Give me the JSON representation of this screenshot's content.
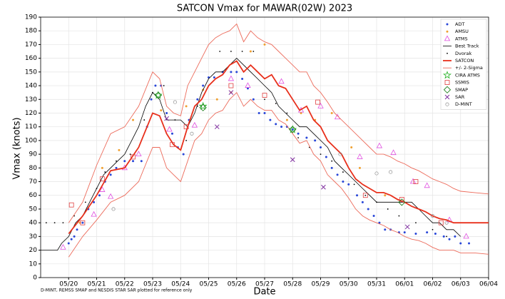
{
  "chart_data": {
    "type": "line",
    "title": "SATCON Vmax for MAWAR(02W) 2023",
    "x_label": "Date",
    "y_label": "Vmax (knots)",
    "footnote": "D-MINT, REMSS SMAP and NESDIS STAR SAR plotted for reference only",
    "xlim": [
      19,
      35
    ],
    "ylim": [
      0,
      190
    ],
    "grid": true,
    "legend": "upper right",
    "xticks": [
      {
        "value": 20,
        "label": "05/20"
      },
      {
        "value": 21,
        "label": "05/21"
      },
      {
        "value": 22,
        "label": "05/22"
      },
      {
        "value": 23,
        "label": "05/23"
      },
      {
        "value": 24,
        "label": "05/24"
      },
      {
        "value": 25,
        "label": "05/25"
      },
      {
        "value": 26,
        "label": "05/26"
      },
      {
        "value": 27,
        "label": "05/27"
      },
      {
        "value": 28,
        "label": "05/28"
      },
      {
        "value": 29,
        "label": "05/29"
      },
      {
        "value": 30,
        "label": "05/30"
      },
      {
        "value": 31,
        "label": "05/31"
      },
      {
        "value": 32,
        "label": "06/01"
      },
      {
        "value": 33,
        "label": "06/02"
      },
      {
        "value": 34,
        "label": "06/03"
      },
      {
        "value": 35,
        "label": "06/04"
      }
    ],
    "yticks": [
      0,
      10,
      20,
      30,
      40,
      50,
      60,
      70,
      80,
      90,
      100,
      110,
      120,
      130,
      140,
      150,
      160,
      170,
      180,
      190
    ],
    "series": [
      {
        "name": "ADT",
        "color": "#2846d8",
        "marker": "dot",
        "x": [
          20.0,
          20.1,
          20.2,
          20.3,
          20.5,
          20.7,
          20.9,
          21.1,
          21.3,
          21.5,
          21.7,
          22.0,
          22.3,
          22.6,
          22.8,
          22.95,
          23.1,
          23.3,
          23.5,
          23.7,
          23.9,
          24.1,
          24.3,
          24.6,
          24.8,
          25.0,
          25.2,
          25.5,
          25.8,
          26.0,
          26.2,
          26.4,
          26.6,
          26.8,
          27.0,
          27.2,
          27.4,
          27.6,
          27.8,
          28.0,
          28.2,
          28.5,
          28.8,
          29.0,
          29.2,
          29.4,
          29.6,
          29.8,
          30.0,
          30.3,
          30.5,
          30.7,
          30.9,
          31.1,
          31.3,
          31.5,
          31.8,
          32.0,
          32.4,
          32.8,
          33.1,
          33.4,
          33.6,
          33.8,
          34.0,
          34.3
        ],
        "values": [
          25,
          28,
          30,
          35,
          40,
          50,
          55,
          60,
          70,
          75,
          80,
          85,
          85,
          85,
          110,
          130,
          140,
          140,
          120,
          105,
          95,
          90,
          115,
          130,
          140,
          146,
          146,
          150,
          150,
          150,
          145,
          138,
          130,
          120,
          120,
          115,
          112,
          110,
          110,
          108,
          105,
          102,
          100,
          95,
          88,
          80,
          75,
          70,
          68,
          60,
          55,
          50,
          45,
          40,
          35,
          35,
          33,
          33,
          32,
          33,
          32,
          30,
          28,
          30,
          25,
          25
        ]
      },
      {
        "name": "AMSU",
        "color": "#f0a030",
        "marker": "dot",
        "x": [
          20.4,
          21.2,
          21.8,
          22.3,
          23.3,
          24.2,
          24.8,
          25.3,
          25.8,
          26.5,
          27.0,
          27.8,
          28.3,
          28.8,
          29.4,
          30.1,
          30.4,
          31.3
        ],
        "values": [
          40,
          80,
          93,
          115,
          122,
          125,
          137,
          130,
          135,
          165,
          170,
          115,
          120,
          115,
          120,
          95,
          80,
          60
        ]
      },
      {
        "name": "ATMS",
        "color": "#e050e0",
        "marker": "triangle",
        "x": [
          19.8,
          20.9,
          21.2,
          21.5,
          22.0,
          22.5,
          23.6,
          24.5,
          25.8,
          26.4,
          27.6,
          28.3,
          29.0,
          29.6,
          30.4,
          31.1,
          31.6,
          32.3,
          32.8,
          33.6,
          34.2
        ],
        "values": [
          22,
          46,
          64,
          59,
          80,
          90,
          108,
          111,
          145,
          140,
          143,
          122,
          125,
          117,
          88,
          96,
          91,
          70,
          67,
          42,
          30
        ]
      },
      {
        "name": "Best Track",
        "color": "#000000",
        "marker": "line",
        "width": 0.8,
        "x": [
          19.0,
          19.6,
          19.75,
          20.0,
          20.25,
          20.5,
          20.75,
          21.0,
          21.25,
          21.5,
          21.75,
          22.0,
          22.25,
          22.5,
          22.75,
          23.0,
          23.25,
          23.5,
          23.75,
          24.0,
          24.25,
          24.5,
          24.75,
          25.0,
          25.25,
          25.5,
          25.75,
          26.0,
          26.25,
          26.5,
          26.75,
          27.0,
          27.25,
          27.5,
          27.75,
          28.0,
          28.25,
          28.5,
          28.75,
          29.0,
          29.25,
          29.5,
          29.75,
          30.0,
          30.25,
          30.5,
          30.75,
          31.0,
          31.25,
          31.5,
          31.75,
          32.0,
          32.25,
          32.5,
          32.75,
          33.0,
          33.25,
          33.5,
          33.75,
          34.0
        ],
        "values": [
          20,
          20,
          25,
          30,
          40,
          45,
          55,
          65,
          75,
          80,
          85,
          90,
          100,
          110,
          125,
          135,
          130,
          115,
          115,
          115,
          110,
          120,
          135,
          145,
          150,
          150,
          155,
          160,
          155,
          150,
          145,
          140,
          135,
          125,
          120,
          115,
          110,
          110,
          105,
          100,
          95,
          85,
          80,
          75,
          70,
          65,
          60,
          55,
          55,
          55,
          55,
          55,
          55,
          50,
          45,
          40,
          40,
          35,
          35,
          30
        ]
      },
      {
        "name": "Dvorak",
        "color": "#000000",
        "marker": "small",
        "x": [
          19.2,
          19.5,
          19.8,
          20.2,
          20.6,
          21.0,
          21.3,
          21.7,
          22.2,
          22.7,
          23.0,
          23.4,
          23.8,
          24.2,
          24.6,
          25.0,
          25.4,
          25.8,
          26.2,
          26.6,
          27.0,
          27.4,
          27.8,
          28.2,
          28.6,
          29.0,
          29.4,
          29.8,
          30.2,
          30.6,
          31.0,
          31.4,
          31.8,
          32.4,
          33.0,
          33.5
        ],
        "values": [
          40,
          40,
          40,
          45,
          55,
          65,
          77,
          85,
          90,
          115,
          135,
          140,
          115,
          100,
          125,
          140,
          165,
          165,
          165,
          165,
          130,
          127,
          120,
          102,
          95,
          90,
          85,
          77,
          68,
          60,
          55,
          50,
          45,
          40,
          35,
          30
        ]
      },
      {
        "name": "SATCON",
        "color": "#e8301c",
        "marker": "line",
        "width": 1.8,
        "x": [
          20.0,
          20.5,
          21.0,
          21.5,
          22.0,
          22.5,
          23.0,
          23.25,
          23.5,
          23.75,
          24.0,
          24.25,
          24.5,
          24.75,
          25.0,
          25.25,
          25.5,
          25.75,
          26.0,
          26.25,
          26.5,
          26.75,
          27.0,
          27.25,
          27.5,
          27.75,
          28.0,
          28.25,
          28.5,
          28.75,
          29.0,
          29.25,
          29.5,
          29.75,
          30.0,
          30.25,
          30.5,
          30.75,
          31.0,
          31.25,
          31.5,
          31.75,
          32.0,
          32.25,
          32.5,
          32.75,
          33.0,
          33.25,
          33.5,
          33.75,
          34.0,
          34.5,
          35.0
        ],
        "values": [
          32,
          45,
          60,
          78,
          80,
          95,
          120,
          118,
          105,
          97,
          93,
          110,
          125,
          130,
          140,
          145,
          148,
          155,
          158,
          150,
          155,
          150,
          145,
          148,
          140,
          138,
          130,
          122,
          125,
          115,
          110,
          100,
          95,
          90,
          80,
          72,
          68,
          65,
          62,
          62,
          60,
          57,
          55,
          52,
          50,
          48,
          45,
          43,
          42,
          40,
          40,
          40,
          40
        ]
      },
      {
        "name": "+/- 2-Sigma",
        "color": "#ec6a5a",
        "marker": "line",
        "width": 0.9,
        "x": [
          20.0,
          20.5,
          21.0,
          21.5,
          22.0,
          22.5,
          23.0,
          23.25,
          23.5,
          23.75,
          24.0,
          24.25,
          24.5,
          24.75,
          25.0,
          25.25,
          25.5,
          25.75,
          26.0,
          26.25,
          26.5,
          26.75,
          27.0,
          27.25,
          27.5,
          27.75,
          28.0,
          28.25,
          28.5,
          28.75,
          29.0,
          29.25,
          29.5,
          29.75,
          30.0,
          30.25,
          30.5,
          30.75,
          31.0,
          31.25,
          31.5,
          31.75,
          32.0,
          32.25,
          32.5,
          32.75,
          33.0,
          33.25,
          33.5,
          33.75,
          34.0,
          34.5,
          35.0
        ],
        "values": [
          40,
          55,
          82,
          105,
          110,
          125,
          150,
          145,
          125,
          120,
          118,
          140,
          150,
          160,
          170,
          175,
          178,
          180,
          185,
          172,
          180,
          175,
          172,
          170,
          165,
          160,
          155,
          150,
          150,
          140,
          135,
          128,
          120,
          115,
          110,
          105,
          100,
          95,
          90,
          90,
          88,
          85,
          83,
          80,
          78,
          75,
          72,
          70,
          68,
          65,
          63,
          62,
          61
        ],
        "lower": [
          15,
          30,
          42,
          55,
          60,
          70,
          95,
          95,
          80,
          75,
          70,
          85,
          100,
          105,
          115,
          120,
          122,
          130,
          135,
          125,
          130,
          125,
          122,
          122,
          115,
          112,
          105,
          98,
          100,
          90,
          85,
          75,
          70,
          65,
          58,
          50,
          45,
          42,
          40,
          38,
          35,
          33,
          30,
          28,
          27,
          25,
          22,
          20,
          20,
          20,
          18,
          18,
          17
        ]
      },
      {
        "name": "CIRA ATMS",
        "color": "#22b022",
        "marker": "star",
        "x": [
          23.2,
          24.8,
          28.0
        ],
        "values": [
          133,
          125,
          108
        ]
      },
      {
        "name": "SSMIS",
        "color": "#e04040",
        "marker": "square",
        "x": [
          20.1,
          20.5,
          21.2,
          22.3,
          23.7,
          24.2,
          25.8,
          27.0,
          28.9,
          30.6,
          31.9,
          32.4,
          33.3
        ],
        "values": [
          53,
          40,
          72,
          88,
          97,
          110,
          140,
          133,
          128,
          60,
          57,
          70,
          40
        ]
      },
      {
        "name": "SMAP",
        "color": "#208020",
        "marker": "diamond",
        "x": [
          23.2,
          24.8,
          28.0,
          31.9
        ],
        "values": [
          133,
          124,
          108,
          55
        ]
      },
      {
        "name": "SAR",
        "color": "#8030a0",
        "marker": "x",
        "x": [
          23.5,
          25.3,
          25.8,
          28.0,
          29.1,
          32.1
        ],
        "values": [
          116,
          110,
          135,
          86,
          66,
          37
        ]
      },
      {
        "name": "D-MINT",
        "color": "#909090",
        "marker": "circle",
        "x": [
          21.6,
          23.8,
          24.4,
          29.7,
          31.0,
          31.5,
          33.0,
          33.5
        ],
        "values": [
          50,
          128,
          105,
          90,
          76,
          77,
          45,
          40
        ]
      }
    ]
  }
}
